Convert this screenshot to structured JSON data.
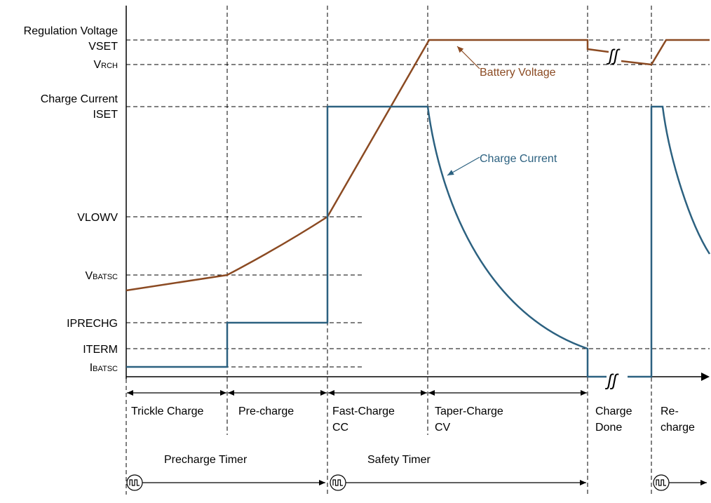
{
  "colors": {
    "battery_voltage": "#8B4A22",
    "charge_current": "#2C6180",
    "axis": "#000000"
  },
  "y_labels": {
    "regulation_voltage": "Regulation Voltage",
    "vset": "VSET",
    "vrch_main": "V",
    "vrch_sub": "RCH",
    "charge_current_label": "Charge Current",
    "iset": "ISET",
    "vlowv": "VLOWV",
    "vbatsc_main": "V",
    "vbatsc_sub": "BATSC",
    "iprechg": "IPRECHG",
    "iterm": "ITERM",
    "ibatsc_main": "I",
    "ibatsc_sub": "BATSC"
  },
  "curve_labels": {
    "battery_voltage": "Battery Voltage",
    "charge_current": "Charge Current"
  },
  "phases": [
    {
      "line1": "Trickle Charge",
      "line2": ""
    },
    {
      "line1": "Pre-charge",
      "line2": ""
    },
    {
      "line1": "Fast-Charge",
      "line2": "CC"
    },
    {
      "line1": "Taper-Charge",
      "line2": "CV"
    },
    {
      "line1": "Charge",
      "line2": "Done"
    },
    {
      "line1": "Re-",
      "line2": "charge"
    }
  ],
  "timers": {
    "precharge": "Precharge Timer",
    "safety": "Safety Timer"
  },
  "timer_icons": [
    "pulse-timer-icon",
    "pulse-timer-icon",
    "pulse-timer-icon"
  ],
  "break_symbol": "ʃʃ"
}
